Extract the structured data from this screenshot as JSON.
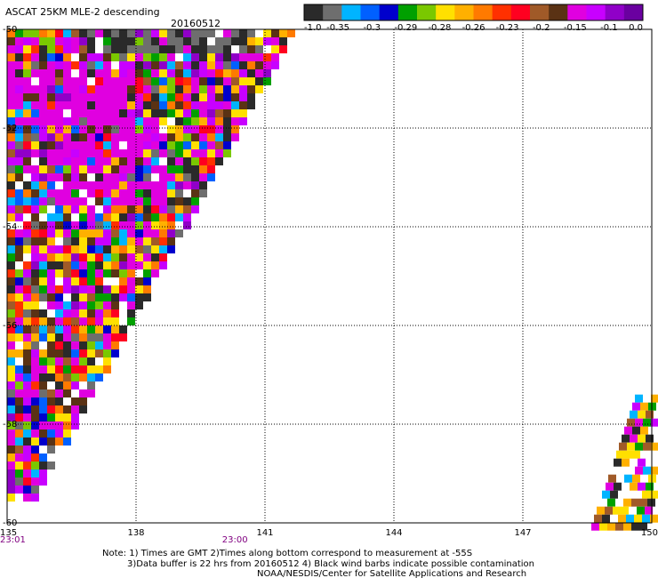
{
  "title": "ASCAT 25KM MLE-2 descending",
  "date": "20160512",
  "colorbar": {
    "labels": [
      "-1.0",
      "-0.35",
      "-0.3",
      "-0.29",
      "-0.28",
      "-0.26",
      "-0.23",
      "-0.2",
      "-0.15",
      "-0.1",
      "0.0"
    ],
    "colors": [
      "#2a2a2a",
      "#6e6e6e",
      "#00b4ff",
      "#0060ff",
      "#0000cc",
      "#00a000",
      "#7ac800",
      "#ffe000",
      "#ffb000",
      "#ff7a00",
      "#ff3000",
      "#ff0020",
      "#a05a28",
      "#5a3214",
      "#e000e0",
      "#c800ff",
      "#9000c8",
      "#6a00a0"
    ]
  },
  "axes": {
    "lon_labels": [
      "135",
      "138",
      "141",
      "144",
      "147",
      "150"
    ],
    "lon_values": [
      135,
      138,
      141,
      144,
      147,
      150
    ],
    "lat_labels": [
      "-50",
      "-52",
      "-54",
      "-56",
      "-58",
      "-60"
    ],
    "lat_values": [
      -50,
      -52,
      -54,
      -56,
      -58,
      -60
    ],
    "lon_range": [
      135,
      150
    ],
    "lat_range": [
      -50,
      -60
    ],
    "grid": "dotted"
  },
  "times": [
    {
      "label": "23:01",
      "lon": 135
    },
    {
      "label": "23:00",
      "lon": 140.3
    }
  ],
  "notes": {
    "line1": "Note: 1) Times are GMT 2)Times along bottom correspond to measurement at -55S",
    "line2": "3)Data buffer is 22 hrs from 20160512 4) Black wind barbs indicate possible contamination",
    "line3": "NOAA/NESDIS/Center for Satellite Applications and Research"
  },
  "chart_data": {
    "type": "heatmap",
    "title": "ASCAT 25KM MLE-2 descending",
    "subtitle": "20160512",
    "xlabel": "",
    "ylabel": "",
    "xlim": [
      135,
      150
    ],
    "ylim": [
      -60,
      -50
    ],
    "value_range": [
      -1.0,
      0.0
    ],
    "swaths": [
      {
        "region": "west",
        "lat_top": -50,
        "lat_bottom": -60,
        "lon_min": 135,
        "lon_max_at_top": 141.6,
        "lon_max_at_bottom": 135.2
      },
      {
        "region": "east",
        "lat_top": -57.4,
        "lat_bottom": -60,
        "lon_min_at_top": 149.6,
        "lon_min_at_bottom": 148.6,
        "lon_max": 150
      }
    ]
  }
}
